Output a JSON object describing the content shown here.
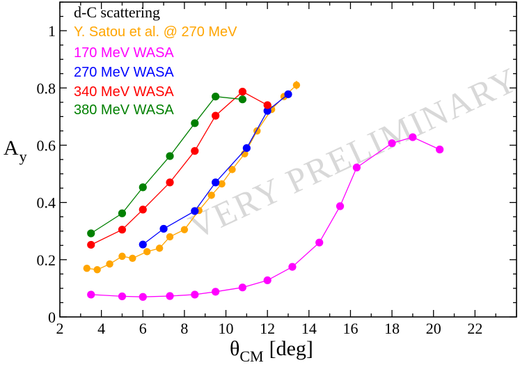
{
  "chart_data": {
    "type": "scatter",
    "title": "d-C scattering",
    "xlabel": "θ",
    "xlabel_sub": "CM",
    "xlabel_unit": "[deg]",
    "ylabel": "A",
    "ylabel_sub": "y",
    "xlim": [
      2,
      24
    ],
    "ylim": [
      0,
      1.1
    ],
    "xticks": [
      2,
      4,
      6,
      8,
      10,
      12,
      14,
      16,
      18,
      20,
      22
    ],
    "yticks": [
      0,
      0.2,
      0.4,
      0.6,
      0.8,
      1
    ],
    "ytick_labels": [
      "0",
      "0.2",
      "0.4",
      "0.6",
      "0.8",
      "1"
    ],
    "watermark": "VERY PRELIMINARY",
    "legend_position": "top-left",
    "series": [
      {
        "name": "Y. Satou et al. @ 270 MeV",
        "color": "#ffa500",
        "x": [
          3.3,
          3.8,
          4.4,
          5.0,
          5.5,
          6.2,
          6.8,
          7.3,
          8.0,
          8.7,
          9.3,
          9.8,
          10.3,
          10.9,
          11.5,
          12.2,
          12.8,
          13.4
        ],
        "y": [
          0.17,
          0.165,
          0.185,
          0.212,
          0.205,
          0.228,
          0.24,
          0.28,
          0.305,
          0.372,
          0.425,
          0.465,
          0.515,
          0.57,
          0.65,
          0.725,
          0.77,
          0.81
        ],
        "err": [
          0.008,
          0.008,
          0.008,
          0.008,
          0.008,
          0.008,
          0.008,
          0.01,
          0.01,
          0.01,
          0.01,
          0.01,
          0.01,
          0.012,
          0.012,
          0.012,
          0.012,
          0.015
        ]
      },
      {
        "name": "170 MeV WASA",
        "color": "#ff00ff",
        "x": [
          3.5,
          5.0,
          6.0,
          7.3,
          8.5,
          9.5,
          10.8,
          12.0,
          13.2,
          14.5,
          15.5,
          16.3,
          18.0,
          19.0,
          20.3
        ],
        "y": [
          0.078,
          0.072,
          0.07,
          0.073,
          0.078,
          0.088,
          0.103,
          0.128,
          0.175,
          0.26,
          0.387,
          0.522,
          0.607,
          0.628,
          0.585
        ]
      },
      {
        "name": "270 MeV WASA",
        "color": "#0000ff",
        "x": [
          6.0,
          7.0,
          8.5,
          9.5,
          11.0,
          12.0,
          13.0
        ],
        "y": [
          0.253,
          0.308,
          0.37,
          0.47,
          0.59,
          0.72,
          0.778
        ]
      },
      {
        "name": "340 MeV WASA",
        "color": "#ff0000",
        "x": [
          3.5,
          5.0,
          6.0,
          7.3,
          8.5,
          9.5,
          10.8,
          12.0
        ],
        "y": [
          0.252,
          0.305,
          0.375,
          0.47,
          0.58,
          0.703,
          0.787,
          0.74
        ]
      },
      {
        "name": "380 MeV WASA",
        "color": "#008000",
        "x": [
          3.5,
          5.0,
          6.0,
          7.3,
          8.5,
          9.5,
          10.8
        ],
        "y": [
          0.292,
          0.362,
          0.453,
          0.562,
          0.677,
          0.77,
          0.76
        ]
      }
    ]
  }
}
